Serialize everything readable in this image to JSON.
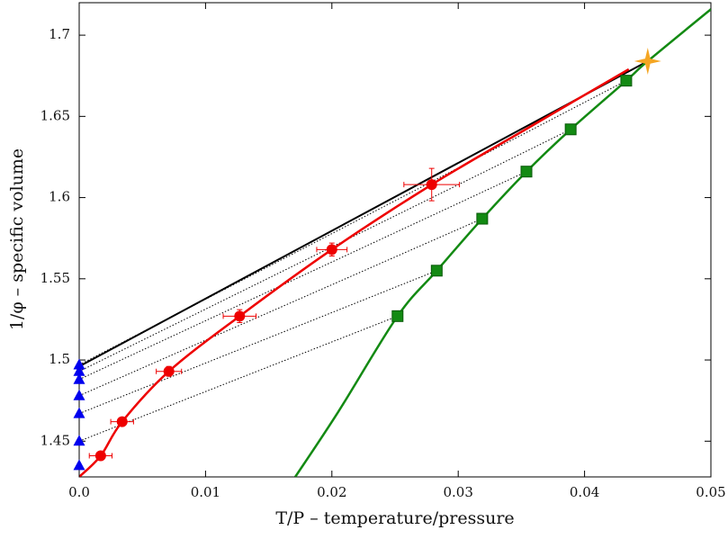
{
  "chart_data": {
    "type": "line",
    "x_label": "T/P – temperature/pressure",
    "y_label": "1/φ – specific volume",
    "xlim": [
      0,
      0.05
    ],
    "ylim": [
      1.428,
      1.72
    ],
    "xticks": [
      {
        "value": 0,
        "label": "0.0"
      },
      0.01,
      0.02,
      0.03,
      0.04,
      0.05
    ],
    "yticks": [
      1.45,
      1.5,
      1.55,
      1.6,
      1.65,
      1.7
    ],
    "series": [
      {
        "color": "#000000",
        "style": "line",
        "x": [
          0,
          0.045
        ],
        "values": [
          1.496,
          1.684
        ]
      },
      {
        "color": "#ee0000",
        "style": "curve",
        "x": [
          0.0,
          0.0017,
          0.0034,
          0.0071,
          0.0127,
          0.02,
          0.0279,
          0.036,
          0.0435
        ],
        "values": [
          1.428,
          1.441,
          1.462,
          1.493,
          1.527,
          1.568,
          1.608,
          1.645,
          1.679
        ]
      },
      {
        "color": "#138a13",
        "style": "curve",
        "x": [
          0.0171,
          0.0205,
          0.0252,
          0.0283,
          0.0319,
          0.0354,
          0.0389,
          0.0433,
          0.045,
          0.05
        ],
        "values": [
          1.428,
          1.468,
          1.527,
          1.555,
          1.587,
          1.616,
          1.642,
          1.672,
          1.684,
          1.716
        ]
      },
      {
        "color": "#ee0000",
        "style": "circle",
        "x": [
          0.0017,
          0.0034,
          0.0071,
          0.0127,
          0.02,
          0.0279
        ],
        "values": [
          1.441,
          1.462,
          1.493,
          1.527,
          1.568,
          1.608
        ],
        "x_errors": [
          0.0009,
          0.0009,
          0.001,
          0.0013,
          0.0012,
          0.0022
        ],
        "y_errors": [
          0.002,
          0.002,
          0.003,
          0.004,
          0.004,
          0.01
        ]
      },
      {
        "color": "#138a13",
        "style": "square",
        "x": [
          0.0252,
          0.0283,
          0.0319,
          0.0354,
          0.0389,
          0.0433
        ],
        "values": [
          1.527,
          1.555,
          1.587,
          1.616,
          1.642,
          1.672
        ]
      },
      {
        "color": "#0000ee",
        "style": "triangle",
        "x": [
          0,
          0,
          0,
          0,
          0,
          0,
          0
        ],
        "values": [
          1.435,
          1.45,
          1.467,
          1.478,
          1.488,
          1.493,
          1.497
        ]
      },
      {
        "color": "#f5a623",
        "style": "star",
        "x": [
          0.045
        ],
        "values": [
          1.684
        ]
      }
    ],
    "tie_lines": [
      {
        "x": [
          0,
          0.0252
        ],
        "values": [
          1.45,
          1.527
        ]
      },
      {
        "x": [
          0,
          0.0283
        ],
        "values": [
          1.467,
          1.555
        ]
      },
      {
        "x": [
          0,
          0.0319
        ],
        "values": [
          1.478,
          1.587
        ]
      },
      {
        "x": [
          0,
          0.0354
        ],
        "values": [
          1.488,
          1.616
        ]
      },
      {
        "x": [
          0,
          0.0389
        ],
        "values": [
          1.493,
          1.642
        ]
      },
      {
        "x": [
          0,
          0.0433
        ],
        "values": [
          1.497,
          1.672
        ]
      }
    ]
  }
}
